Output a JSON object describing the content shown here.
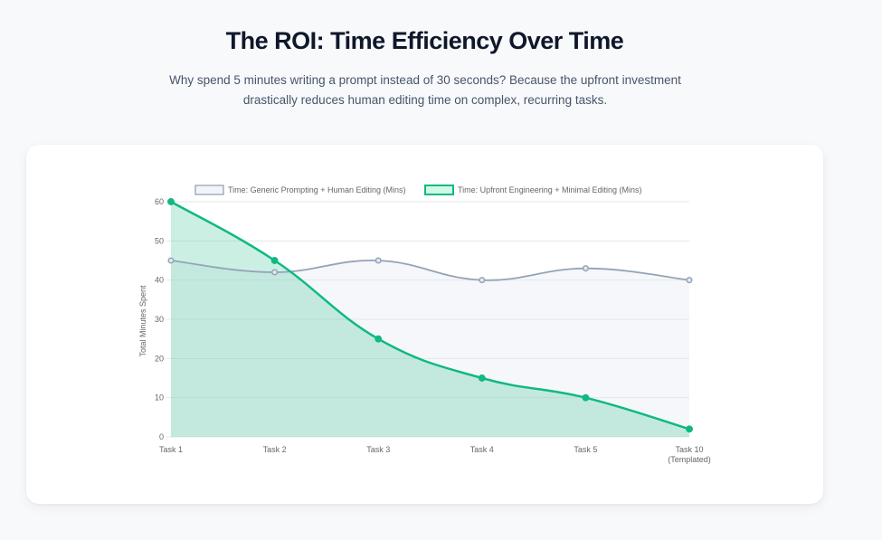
{
  "header": {
    "title": "The ROI: Time Efficiency Over Time",
    "subtitle": "Why spend 5 minutes writing a prompt instead of 30 seconds? Because the upfront investment drastically reduces human editing time on complex, recurring tasks."
  },
  "colors": {
    "generic_line": "#94a3b8",
    "generic_fill": "rgba(226,232,240,0.35)",
    "engineered_line": "#10b981",
    "engineered_fill": "rgba(16,185,129,0.22)",
    "grid": "#e5e7eb"
  },
  "chart_data": {
    "type": "line",
    "title": "",
    "xlabel": "",
    "ylabel": "Total Minutes Spent",
    "ylim": [
      0,
      60
    ],
    "yticks": [
      "0",
      "10",
      "20",
      "30",
      "40",
      "50",
      "60"
    ],
    "categories": [
      [
        "Task 1"
      ],
      [
        "Task 2"
      ],
      [
        "Task 3"
      ],
      [
        "Task 4"
      ],
      [
        "Task 5"
      ],
      [
        "Task 10",
        "(Templated)"
      ]
    ],
    "grid": true,
    "legend_position": "top",
    "series": [
      {
        "name": "Time: Generic Prompting + Human Editing (Mins)",
        "values": [
          45,
          42,
          45,
          40,
          43,
          40
        ],
        "fill": true
      },
      {
        "name": "Time: Upfront Engineering + Minimal Editing (Mins)",
        "values": [
          60,
          45,
          25,
          15,
          10,
          2
        ],
        "fill": true
      }
    ]
  }
}
